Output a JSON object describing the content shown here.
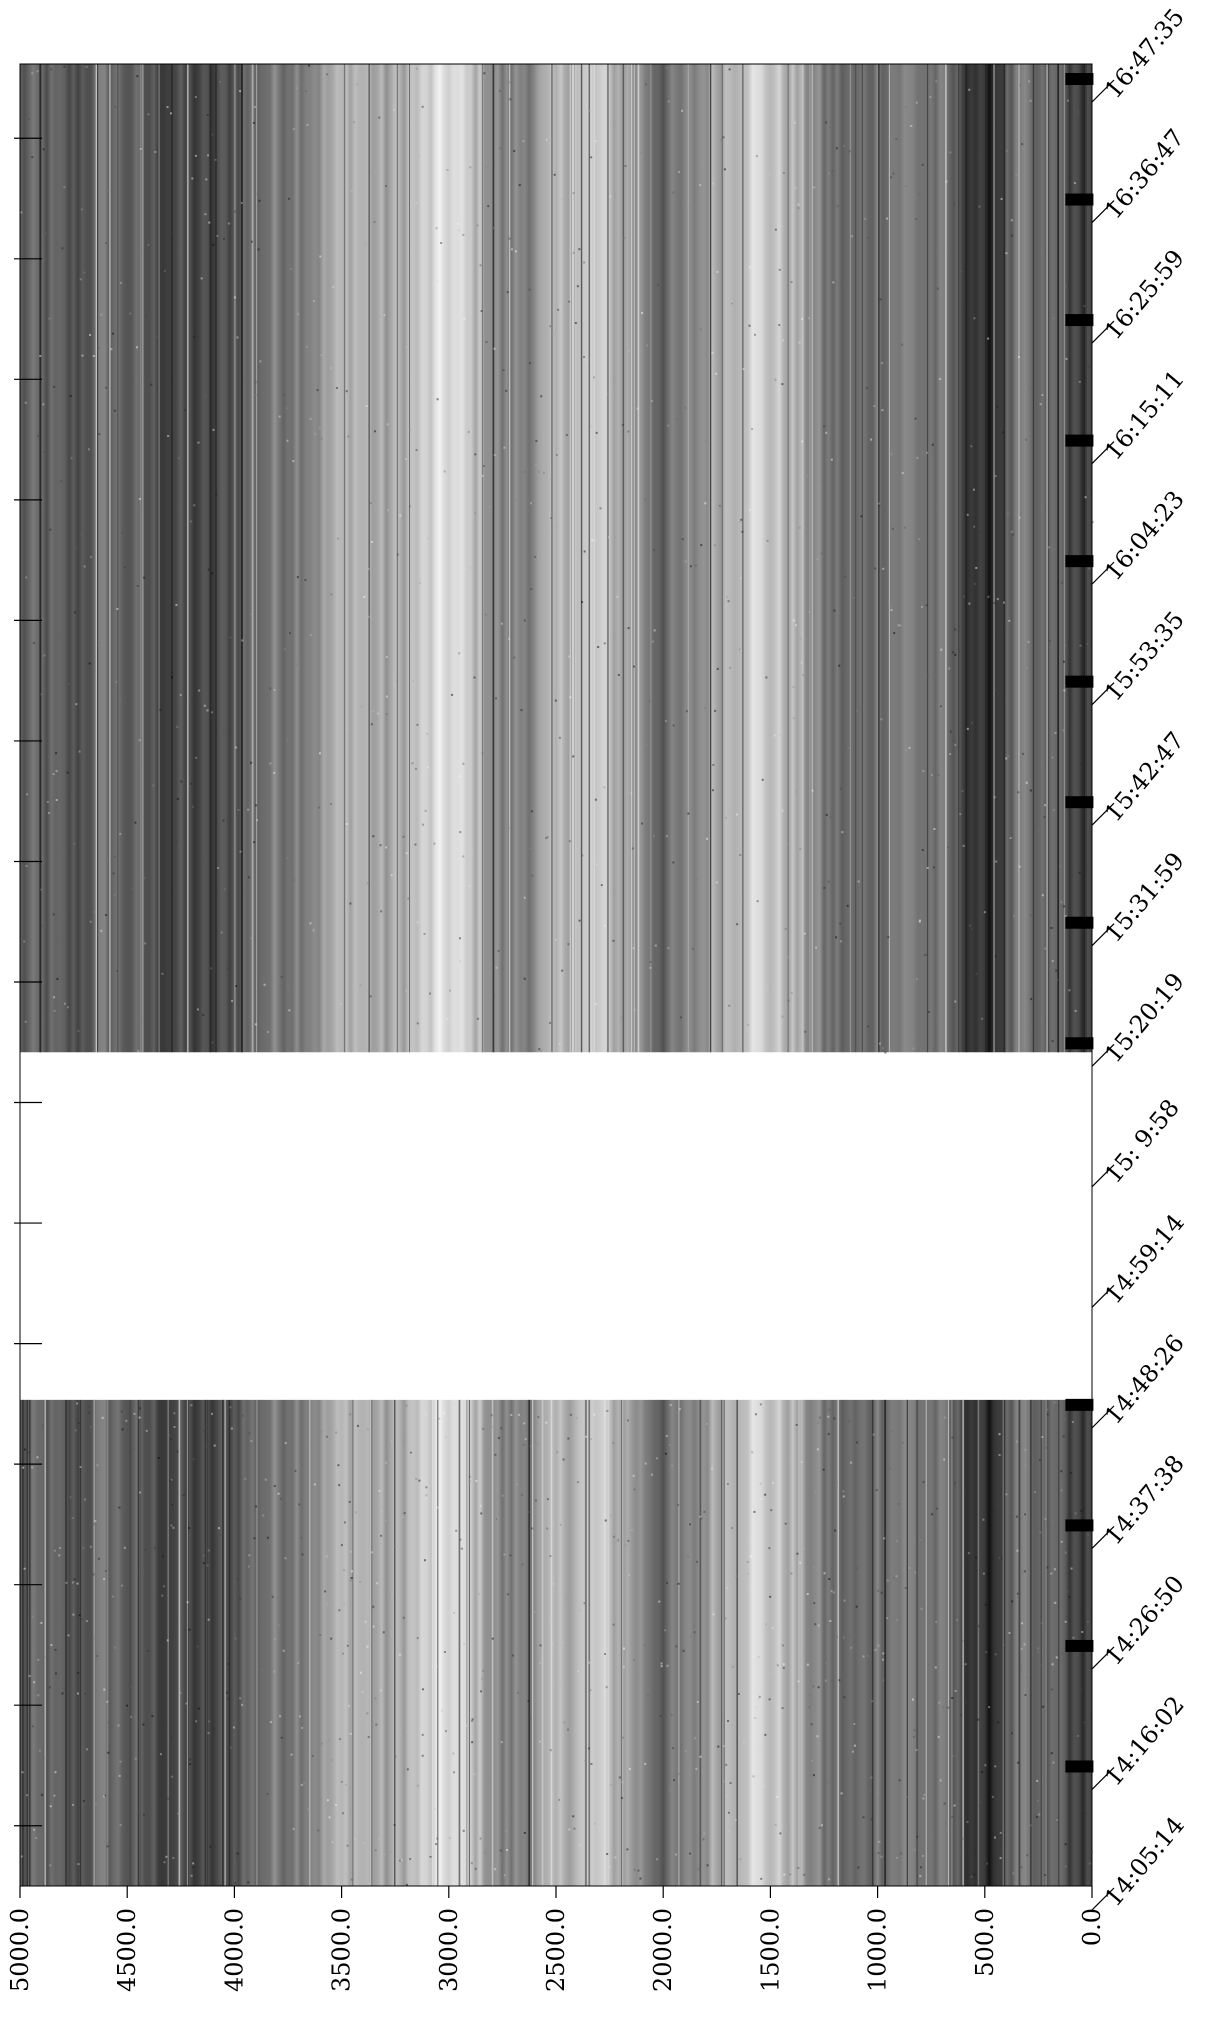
{
  "chart_data": {
    "type": "heatmap",
    "title": "",
    "xlabel": "",
    "ylabel": "",
    "colormap": "grayscale",
    "frequency_ticks": [
      "5000.0",
      "4500.0",
      "4000.0",
      "3500.0",
      "3000.0",
      "2500.0",
      "2000.0",
      "1500.0",
      "1000.0",
      "500.0",
      "0.0"
    ],
    "frequency_values": [
      5000,
      4500,
      4000,
      3500,
      3000,
      2500,
      2000,
      1500,
      1000,
      500,
      0
    ],
    "frequency_range": [
      0,
      5000
    ],
    "time_ticks": [
      "16:47:35",
      "16:36:47",
      "16:25:59",
      "16:15:11",
      "16:04:23",
      "15:53:35",
      "15:42:47",
      "15:31:59",
      "15:20:19",
      "15: 9:58",
      "14:59:14",
      "14:48:26",
      "14:37:38",
      "14:26:50",
      "14:16:02",
      "14:05:14"
    ],
    "time_gap": {
      "start_tick": "15:20:19",
      "end_tick": "14:48:26"
    },
    "spectral_profile": [
      {
        "freq": 0,
        "level": 0.3
      },
      {
        "freq": 80,
        "level": 0.22
      },
      {
        "freq": 140,
        "level": 0.4
      },
      {
        "freq": 250,
        "level": 0.35
      },
      {
        "freq": 330,
        "level": 0.45
      },
      {
        "freq": 420,
        "level": 0.3
      },
      {
        "freq": 500,
        "level": 0.12
      },
      {
        "freq": 560,
        "level": 0.25
      },
      {
        "freq": 700,
        "level": 0.42
      },
      {
        "freq": 850,
        "level": 0.5
      },
      {
        "freq": 1000,
        "level": 0.48
      },
      {
        "freq": 1100,
        "level": 0.38
      },
      {
        "freq": 1250,
        "level": 0.45
      },
      {
        "freq": 1400,
        "level": 0.7
      },
      {
        "freq": 1500,
        "level": 0.78
      },
      {
        "freq": 1600,
        "level": 0.85
      },
      {
        "freq": 1750,
        "level": 0.68
      },
      {
        "freq": 1900,
        "level": 0.45
      },
      {
        "freq": 2000,
        "level": 0.4
      },
      {
        "freq": 2150,
        "level": 0.62
      },
      {
        "freq": 2300,
        "level": 0.78
      },
      {
        "freq": 2450,
        "level": 0.72
      },
      {
        "freq": 2600,
        "level": 0.56
      },
      {
        "freq": 2750,
        "level": 0.48
      },
      {
        "freq": 2850,
        "level": 0.7
      },
      {
        "freq": 3000,
        "level": 0.88
      },
      {
        "freq": 3150,
        "level": 0.75
      },
      {
        "freq": 3300,
        "level": 0.62
      },
      {
        "freq": 3450,
        "level": 0.74
      },
      {
        "freq": 3600,
        "level": 0.58
      },
      {
        "freq": 3800,
        "level": 0.48
      },
      {
        "freq": 3950,
        "level": 0.4
      },
      {
        "freq": 4100,
        "level": 0.25
      },
      {
        "freq": 4300,
        "level": 0.28
      },
      {
        "freq": 4450,
        "level": 0.34
      },
      {
        "freq": 4600,
        "level": 0.45
      },
      {
        "freq": 4750,
        "level": 0.3
      },
      {
        "freq": 4900,
        "level": 0.38
      },
      {
        "freq": 5000,
        "level": 0.35
      }
    ],
    "grid": false,
    "legend": "none"
  }
}
